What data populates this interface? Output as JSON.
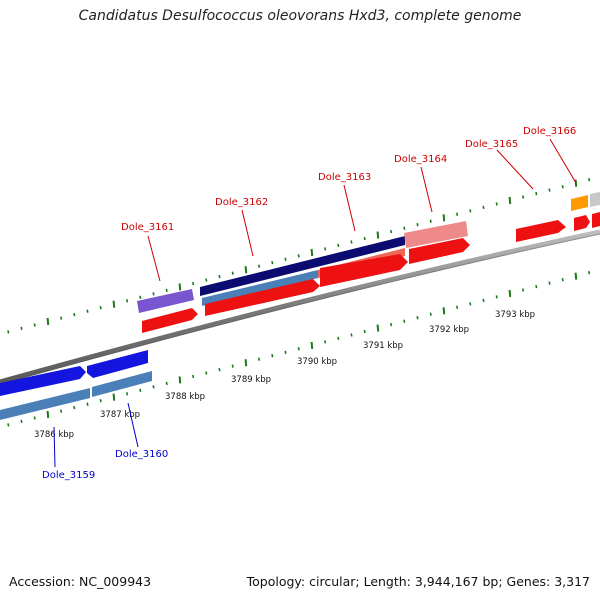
{
  "title": "Candidatus Desulfococcus oleovorans Hxd3, complete genome",
  "footer": {
    "accession": "Accession: NC_009943",
    "summary": "Topology: circular; Length: 3,944,167 bp; Genes: 3,317"
  },
  "scale_labels": [
    "3786 kbp",
    "3787 kbp",
    "3788 kbp",
    "3789 kbp",
    "3790 kbp",
    "3791 kbp",
    "3792 kbp",
    "3793 kbp"
  ],
  "gene_labels": [
    {
      "name": "Dole_3159",
      "strand": "minus"
    },
    {
      "name": "Dole_3160",
      "strand": "minus"
    },
    {
      "name": "Dole_3161",
      "strand": "plus"
    },
    {
      "name": "Dole_3162",
      "strand": "plus"
    },
    {
      "name": "Dole_3163",
      "strand": "plus"
    },
    {
      "name": "Dole_3164",
      "strand": "plus"
    },
    {
      "name": "Dole_3165",
      "strand": "plus"
    },
    {
      "name": "Dole_3166",
      "strand": "plus"
    }
  ],
  "colors": {
    "plus": "#cc0000",
    "minus": "#0000cc",
    "tick": "#1a7a1a",
    "backbone": "#888888"
  }
}
